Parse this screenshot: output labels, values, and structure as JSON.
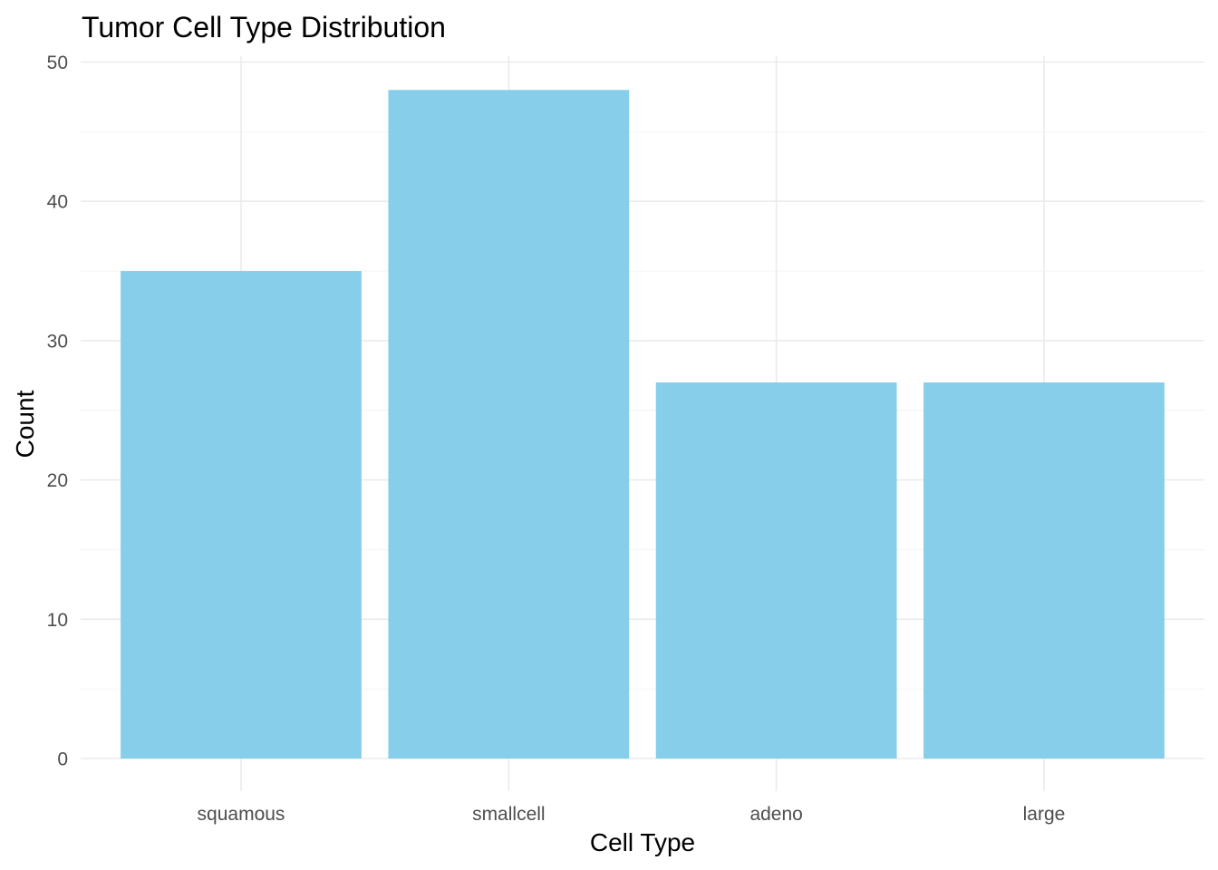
{
  "chart_data": {
    "type": "bar",
    "title": "Tumor Cell Type Distribution",
    "xlabel": "Cell Type",
    "ylabel": "Count",
    "categories": [
      "squamous",
      "smallcell",
      "adeno",
      "large"
    ],
    "values": [
      35,
      48,
      27,
      27
    ],
    "ylim": [
      0,
      50
    ],
    "yticks": [
      0,
      10,
      20,
      30,
      40,
      50
    ],
    "grid": true,
    "bar_color": "#87CEEB",
    "legend": "none"
  }
}
